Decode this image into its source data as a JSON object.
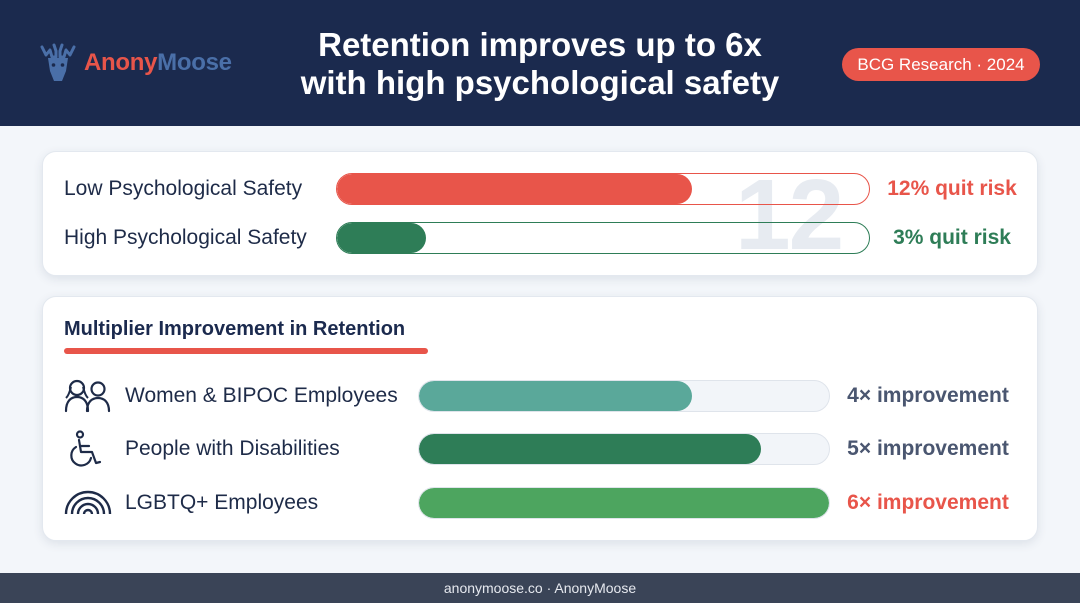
{
  "header": {
    "logo_part1": "Anony",
    "logo_part2": "Moose",
    "title_line1": "Retention improves up to 6x",
    "title_line2": "with high psychological safety",
    "badge": "BCG Research · 2024"
  },
  "colors": {
    "header_bg": "#1b2a4e",
    "accent_red": "#e8554a",
    "dark_green": "#2e7d57",
    "teal": "#5aa89a",
    "green": "#4da55f",
    "slate": "#4a5670"
  },
  "chart_data": [
    {
      "type": "bar",
      "orientation": "horizontal",
      "categories": [
        "Low Psychological Safety",
        "High Psychological Safety"
      ],
      "values": [
        12,
        3
      ],
      "value_labels": [
        "12% quit risk",
        "3% quit risk"
      ],
      "unit": "% quit risk",
      "xlim": [
        0,
        18
      ],
      "watermark": "12",
      "colors": [
        "#e8554a",
        "#2e7d57"
      ]
    },
    {
      "type": "bar",
      "orientation": "horizontal",
      "title": "Multiplier Improvement in Retention",
      "categories": [
        "Women & BIPOC Employees",
        "People with Disabilities",
        "LGBTQ+ Employees"
      ],
      "icons": [
        "people-icon",
        "wheelchair-icon",
        "rainbow-icon"
      ],
      "values": [
        4,
        5,
        6
      ],
      "value_labels": [
        "4× improvement",
        "5× improvement",
        "6× improvement"
      ],
      "xlim": [
        0,
        6
      ],
      "colors": [
        "#5aa89a",
        "#2e7d57",
        "#4da55f"
      ]
    }
  ],
  "footer": {
    "text": "anonymoose.co · AnonyMoose"
  }
}
